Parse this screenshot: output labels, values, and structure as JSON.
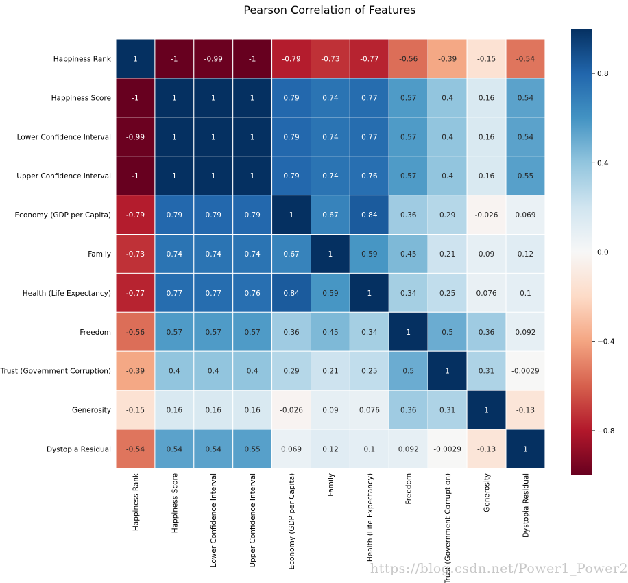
{
  "watermark": "https://blog.csdn.net/Power1_Power2",
  "chart_data": {
    "type": "heatmap",
    "title": "Pearson Correlation of Features",
    "rows": [
      "Happiness Rank",
      "Happiness Score",
      "Lower Confidence Interval",
      "Upper Confidence Interval",
      "Economy (GDP per Capita)",
      "Family",
      "Health (Life Expectancy)",
      "Freedom",
      "Trust (Government Corruption)",
      "Generosity",
      "Dystopia Residual"
    ],
    "columns": [
      "Happiness Rank",
      "Happiness Score",
      "Lower Confidence Interval",
      "Upper Confidence Interval",
      "Economy (GDP per Capita)",
      "Family",
      "Health (Life Expectancy)",
      "Freedom",
      "Trust (Government Corruption)",
      "Generosity",
      "Dystopia Residual"
    ],
    "values": [
      [
        1,
        -1,
        -0.99,
        -1,
        -0.79,
        -0.73,
        -0.77,
        -0.56,
        -0.39,
        -0.15,
        -0.54
      ],
      [
        -1,
        1,
        1,
        1,
        0.79,
        0.74,
        0.77,
        0.57,
        0.4,
        0.16,
        0.54
      ],
      [
        -0.99,
        1,
        1,
        1,
        0.79,
        0.74,
        0.77,
        0.57,
        0.4,
        0.16,
        0.54
      ],
      [
        -1,
        1,
        1,
        1,
        0.79,
        0.74,
        0.76,
        0.57,
        0.4,
        0.16,
        0.55
      ],
      [
        -0.79,
        0.79,
        0.79,
        0.79,
        1,
        0.67,
        0.84,
        0.36,
        0.29,
        -0.026,
        0.069
      ],
      [
        -0.73,
        0.74,
        0.74,
        0.74,
        0.67,
        1,
        0.59,
        0.45,
        0.21,
        0.09,
        0.12
      ],
      [
        -0.77,
        0.77,
        0.77,
        0.76,
        0.84,
        0.59,
        1,
        0.34,
        0.25,
        0.076,
        0.1
      ],
      [
        -0.56,
        0.57,
        0.57,
        0.57,
        0.36,
        0.45,
        0.34,
        1,
        0.5,
        0.36,
        0.092
      ],
      [
        -0.39,
        0.4,
        0.4,
        0.4,
        0.29,
        0.21,
        0.25,
        0.5,
        1,
        0.31,
        -0.0029
      ],
      [
        -0.15,
        0.16,
        0.16,
        0.16,
        -0.026,
        0.09,
        0.076,
        0.36,
        0.31,
        1,
        -0.13
      ],
      [
        -0.54,
        0.54,
        0.54,
        0.55,
        0.069,
        0.12,
        0.1,
        0.092,
        -0.0029,
        -0.13,
        1
      ]
    ],
    "vmin": -1,
    "vmax": 1,
    "colormap": "RdBu",
    "colorbar_ticks": [
      0.8,
      0.4,
      0.0,
      -0.4,
      -0.8
    ],
    "colorbar_tick_labels": [
      "0.8",
      "0.4",
      "0.0",
      "−0.4",
      "−0.8"
    ],
    "annotations": true,
    "cell_border_color": "#ffffff"
  }
}
